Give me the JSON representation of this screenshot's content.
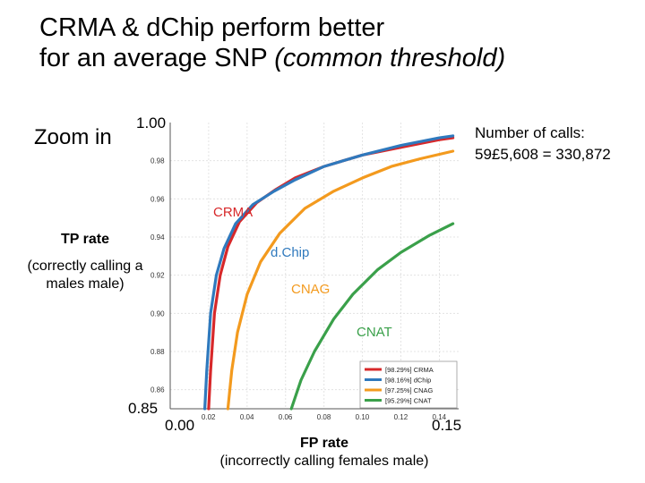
{
  "title": {
    "line1": "CRMA & dChip perform better",
    "line2_plain": "for an average SNP ",
    "line2_italic": "(common threshold)"
  },
  "zoom_label": "Zoom in",
  "y_axis": {
    "title": "TP rate",
    "subtitle": "(correctly calling a males male)",
    "big_top": "1.00",
    "big_bottom": "0.85"
  },
  "x_axis": {
    "title": "FP rate",
    "subtitle": "(incorrectly calling females male)",
    "big_left": "0.00",
    "big_right": "0.15"
  },
  "calls_note": {
    "line1": "Number of calls:",
    "line2": "59£5,608 = 330,872"
  },
  "chart_data": {
    "type": "line",
    "xlim": [
      0.0,
      0.15
    ],
    "ylim": [
      0.85,
      1.0
    ],
    "x_ticks": [
      "0.02",
      "0.04",
      "0.06",
      "0.08",
      "0.10",
      "0.12",
      "0.14"
    ],
    "y_ticks": [
      "0.98",
      "0.96",
      "0.94",
      "0.92",
      "0.90",
      "0.88",
      "0.86"
    ],
    "grid": true,
    "legend_position": "bottom-right",
    "legend": [
      "[98.29%] CRMA",
      "[98.16%] dChip",
      "[97.25%] CNAG",
      "[95.29%] CNAT"
    ],
    "series": [
      {
        "name": "CRMA",
        "label": "CRMA",
        "color": "#d7282a",
        "points": [
          [
            0.02,
            0.85
          ],
          [
            0.021,
            0.87
          ],
          [
            0.023,
            0.9
          ],
          [
            0.026,
            0.92
          ],
          [
            0.03,
            0.935
          ],
          [
            0.036,
            0.948
          ],
          [
            0.045,
            0.958
          ],
          [
            0.055,
            0.965
          ],
          [
            0.065,
            0.971
          ],
          [
            0.08,
            0.977
          ],
          [
            0.1,
            0.983
          ],
          [
            0.12,
            0.987
          ],
          [
            0.14,
            0.991
          ],
          [
            0.147,
            0.992
          ]
        ]
      },
      {
        "name": "dChip",
        "label": "d.Chip",
        "color": "#2f79bd",
        "points": [
          [
            0.018,
            0.85
          ],
          [
            0.019,
            0.87
          ],
          [
            0.021,
            0.9
          ],
          [
            0.024,
            0.92
          ],
          [
            0.028,
            0.934
          ],
          [
            0.034,
            0.947
          ],
          [
            0.043,
            0.957
          ],
          [
            0.054,
            0.964
          ],
          [
            0.065,
            0.97
          ],
          [
            0.08,
            0.977
          ],
          [
            0.1,
            0.983
          ],
          [
            0.12,
            0.988
          ],
          [
            0.14,
            0.992
          ],
          [
            0.147,
            0.993
          ]
        ]
      },
      {
        "name": "CNAG",
        "label": "CNAG",
        "color": "#f39a1e",
        "points": [
          [
            0.03,
            0.85
          ],
          [
            0.032,
            0.87
          ],
          [
            0.035,
            0.89
          ],
          [
            0.04,
            0.91
          ],
          [
            0.047,
            0.927
          ],
          [
            0.057,
            0.942
          ],
          [
            0.07,
            0.955
          ],
          [
            0.085,
            0.964
          ],
          [
            0.1,
            0.971
          ],
          [
            0.115,
            0.977
          ],
          [
            0.13,
            0.981
          ],
          [
            0.147,
            0.985
          ]
        ]
      },
      {
        "name": "CNAT",
        "label": "CNAT",
        "color": "#3aa04a",
        "points": [
          [
            0.063,
            0.85
          ],
          [
            0.068,
            0.865
          ],
          [
            0.075,
            0.88
          ],
          [
            0.085,
            0.897
          ],
          [
            0.095,
            0.91
          ],
          [
            0.108,
            0.923
          ],
          [
            0.12,
            0.932
          ],
          [
            0.135,
            0.941
          ],
          [
            0.147,
            0.947
          ]
        ]
      }
    ]
  }
}
